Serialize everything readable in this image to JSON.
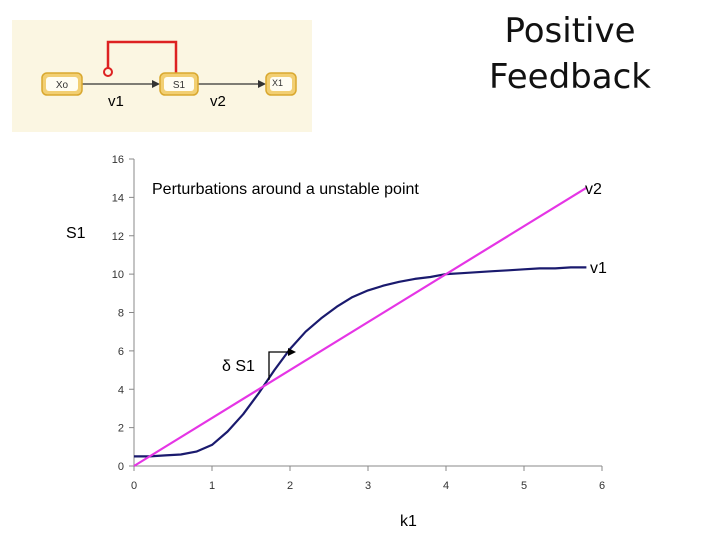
{
  "slide": {
    "title": "Positive\nFeedback"
  },
  "pathway": {
    "nodes": [
      "Xo",
      "S1",
      "X1"
    ],
    "rate_labels": [
      "v1",
      "v2"
    ],
    "colors": {
      "background": "#fbf6e2",
      "node_fill": "#f2cf73",
      "node_border": "#d9a82f",
      "feedback": "#dd2222",
      "arrow": "#333333"
    }
  },
  "chart_data": {
    "type": "line",
    "annotation": "Perturbations around a unstable point",
    "xlabel": "k1",
    "ylabel": "S1",
    "xlim": [
      0,
      6
    ],
    "ylim": [
      0,
      16
    ],
    "x_ticks": [
      0,
      1,
      2,
      3,
      4,
      5,
      6
    ],
    "y_ticks": [
      0,
      2,
      4,
      6,
      8,
      10,
      12,
      14,
      16
    ],
    "grid": false,
    "perturbation_label": "δ S1",
    "series": [
      {
        "name": "v1",
        "color": "#1a1a6e",
        "x": [
          0,
          0.2,
          0.4,
          0.6,
          0.8,
          1.0,
          1.2,
          1.4,
          1.6,
          1.8,
          2.0,
          2.2,
          2.4,
          2.6,
          2.8,
          3.0,
          3.2,
          3.4,
          3.6,
          3.8,
          4.0,
          4.2,
          4.4,
          4.6,
          4.8,
          5.0,
          5.2,
          5.4,
          5.6,
          5.8
        ],
        "y": [
          0.5,
          0.5,
          0.55,
          0.6,
          0.75,
          1.1,
          1.8,
          2.7,
          3.8,
          5.0,
          6.1,
          7.0,
          7.7,
          8.3,
          8.8,
          9.15,
          9.4,
          9.6,
          9.75,
          9.85,
          10.0,
          10.05,
          10.1,
          10.15,
          10.2,
          10.25,
          10.3,
          10.3,
          10.35,
          10.35
        ]
      },
      {
        "name": "v2",
        "color": "#e535e5",
        "x": [
          0,
          5.8
        ],
        "y": [
          0,
          14.5
        ]
      }
    ]
  }
}
